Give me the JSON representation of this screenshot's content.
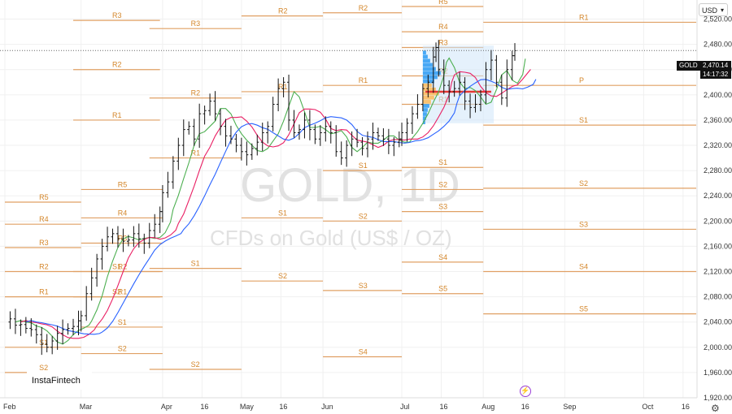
{
  "chart_data": {
    "type": "candlestick",
    "title": "GOLD, 1D",
    "subtitle": "CFDs on Gold (US$ / OZ)",
    "currency": "USD",
    "symbol": "GOLD",
    "last_price": "2,470.14",
    "countdown": "14:17:32",
    "brand": "InstaFintech",
    "ylim": [
      1920,
      2540
    ],
    "yticks": [
      1920,
      1960,
      2000,
      2040,
      2080,
      2120,
      2160,
      2200,
      2240,
      2280,
      2320,
      2360,
      2400,
      2440,
      2480,
      2520
    ],
    "ytick_labels": [
      "1,920.00",
      "1,960.00",
      "2,000.00",
      "2,040.00",
      "2,080.00",
      "2,120.00",
      "2,160.00",
      "2,200.00",
      "2,240.00",
      "2,280.00",
      "2,320.00",
      "2,360.00",
      "2,400.00",
      "2,440.00",
      "2,480.00",
      "2,520.00"
    ],
    "xticks": [
      "Feb",
      "Mar",
      "Apr",
      "16",
      "May",
      "16",
      "Jun",
      "Jul",
      "16",
      "Aug",
      "16",
      "Sep",
      "Oct",
      "16"
    ],
    "xtick_days": [
      0,
      29,
      60,
      75,
      90,
      105,
      121,
      151,
      166,
      182,
      197,
      213,
      243,
      258
    ],
    "last_day": 194,
    "axis_end_day": 263,
    "ohlc": [],
    "close_series": [
      [
        0,
        2040
      ],
      [
        2,
        2045
      ],
      [
        4,
        2035
      ],
      [
        6,
        2036
      ],
      [
        8,
        2030
      ],
      [
        10,
        2028
      ],
      [
        12,
        2020
      ],
      [
        14,
        2005
      ],
      [
        16,
        2000
      ],
      [
        18,
        2010
      ],
      [
        20,
        2022
      ],
      [
        22,
        2028
      ],
      [
        24,
        2030
      ],
      [
        26,
        2033
      ],
      [
        28,
        2042
      ],
      [
        29,
        2050
      ],
      [
        31,
        2085
      ],
      [
        33,
        2110
      ],
      [
        35,
        2140
      ],
      [
        37,
        2160
      ],
      [
        39,
        2175
      ],
      [
        41,
        2180
      ],
      [
        43,
        2172
      ],
      [
        45,
        2168
      ],
      [
        47,
        2170
      ],
      [
        49,
        2180
      ],
      [
        51,
        2172
      ],
      [
        53,
        2165
      ],
      [
        55,
        2185
      ],
      [
        57,
        2195
      ],
      [
        59,
        2215
      ],
      [
        60,
        2245
      ],
      [
        62,
        2262
      ],
      [
        64,
        2295
      ],
      [
        66,
        2320
      ],
      [
        68,
        2345
      ],
      [
        70,
        2350
      ],
      [
        72,
        2330
      ],
      [
        74,
        2370
      ],
      [
        76,
        2375
      ],
      [
        78,
        2390
      ],
      [
        80,
        2370
      ],
      [
        82,
        2350
      ],
      [
        84,
        2335
      ],
      [
        86,
        2330
      ],
      [
        88,
        2320
      ],
      [
        90,
        2310
      ],
      [
        92,
        2305
      ],
      [
        94,
        2315
      ],
      [
        96,
        2325
      ],
      [
        98,
        2340
      ],
      [
        100,
        2350
      ],
      [
        102,
        2385
      ],
      [
        104,
        2410
      ],
      [
        106,
        2420
      ],
      [
        108,
        2360
      ],
      [
        110,
        2340
      ],
      [
        112,
        2345
      ],
      [
        114,
        2360
      ],
      [
        116,
        2345
      ],
      [
        118,
        2330
      ],
      [
        120,
        2340
      ],
      [
        122,
        2350
      ],
      [
        124,
        2340
      ],
      [
        126,
        2310
      ],
      [
        128,
        2300
      ],
      [
        130,
        2320
      ],
      [
        132,
        2330
      ],
      [
        134,
        2325
      ],
      [
        136,
        2315
      ],
      [
        138,
        2330
      ],
      [
        140,
        2340
      ],
      [
        142,
        2335
      ],
      [
        144,
        2330
      ],
      [
        146,
        2320
      ],
      [
        148,
        2325
      ],
      [
        150,
        2330
      ],
      [
        151,
        2340
      ],
      [
        153,
        2355
      ],
      [
        155,
        2370
      ],
      [
        157,
        2385
      ],
      [
        159,
        2410
      ],
      [
        161,
        2420
      ],
      [
        163,
        2460
      ],
      [
        164,
        2475
      ],
      [
        165,
        2440
      ],
      [
        167,
        2415
      ],
      [
        169,
        2405
      ],
      [
        171,
        2410
      ],
      [
        173,
        2420
      ],
      [
        175,
        2390
      ],
      [
        177,
        2380
      ],
      [
        179,
        2385
      ],
      [
        181,
        2400
      ],
      [
        183,
        2440
      ],
      [
        185,
        2455
      ],
      [
        187,
        2420
      ],
      [
        189,
        2395
      ],
      [
        191,
        2440
      ],
      [
        193,
        2462
      ],
      [
        194,
        2470
      ]
    ],
    "pivots": [
      {
        "label": "R3",
        "x0": 26,
        "x1": 59,
        "y": 2518
      },
      {
        "label": "R2",
        "x0": 26,
        "x1": 59,
        "y": 2440
      },
      {
        "label": "R1",
        "x0": 26,
        "x1": 59,
        "y": 2360
      },
      {
        "label": "S1",
        "x0": 26,
        "x1": 59,
        "y": 2120
      },
      {
        "label": "S2",
        "x0": 26,
        "x1": 59,
        "y": 2080
      },
      {
        "label": "R5",
        "x0": 0,
        "x1": 29,
        "y": 2230
      },
      {
        "label": "R4",
        "x0": 0,
        "x1": 29,
        "y": 2195
      },
      {
        "label": "R3",
        "x0": 0,
        "x1": 29,
        "y": 2158
      },
      {
        "label": "R2",
        "x0": 0,
        "x1": 29,
        "y": 2120
      },
      {
        "label": "R1",
        "x0": 0,
        "x1": 29,
        "y": 2080
      },
      {
        "label": "S1",
        "x0": 0,
        "x1": 29,
        "y": 2000
      },
      {
        "label": "S2",
        "x0": 0,
        "x1": 29,
        "y": 1960
      },
      {
        "label": "R5",
        "x0": 29,
        "x1": 60,
        "y": 2250
      },
      {
        "label": "R4",
        "x0": 29,
        "x1": 60,
        "y": 2205
      },
      {
        "label": "R3",
        "x0": 29,
        "x1": 60,
        "y": 2165
      },
      {
        "label": "R2",
        "x0": 29,
        "x1": 60,
        "y": 2120
      },
      {
        "label": "R1",
        "x0": 29,
        "x1": 60,
        "y": 2080
      },
      {
        "label": "S1",
        "x0": 29,
        "x1": 60,
        "y": 2032
      },
      {
        "label": "S2",
        "x0": 29,
        "x1": 60,
        "y": 1990
      },
      {
        "label": "R3",
        "x0": 55,
        "x1": 90,
        "y": 2505
      },
      {
        "label": "R2",
        "x0": 55,
        "x1": 90,
        "y": 2395
      },
      {
        "label": "R1",
        "x0": 55,
        "x1": 90,
        "y": 2300
      },
      {
        "label": "S1",
        "x0": 55,
        "x1": 90,
        "y": 2125
      },
      {
        "label": "S2",
        "x0": 55,
        "x1": 90,
        "y": 1965
      },
      {
        "label": "R2",
        "x0": 90,
        "x1": 121,
        "y": 2525
      },
      {
        "label": "R1",
        "x0": 90,
        "x1": 121,
        "y": 2405
      },
      {
        "label": "S1",
        "x0": 90,
        "x1": 121,
        "y": 2205
      },
      {
        "label": "S2",
        "x0": 90,
        "x1": 121,
        "y": 2105
      },
      {
        "label": "R2",
        "x0": 121,
        "x1": 151,
        "y": 2530
      },
      {
        "label": "R1",
        "x0": 121,
        "x1": 151,
        "y": 2415
      },
      {
        "label": "S1",
        "x0": 121,
        "x1": 151,
        "y": 2280
      },
      {
        "label": "S2",
        "x0": 121,
        "x1": 151,
        "y": 2200
      },
      {
        "label": "S3",
        "x0": 121,
        "x1": 151,
        "y": 2090
      },
      {
        "label": "S4",
        "x0": 121,
        "x1": 151,
        "y": 1985
      },
      {
        "label": "R5",
        "x0": 151,
        "x1": 182,
        "y": 2540
      },
      {
        "label": "R4",
        "x0": 151,
        "x1": 182,
        "y": 2500
      },
      {
        "label": "R3",
        "x0": 151,
        "x1": 182,
        "y": 2475
      },
      {
        "label": "R2",
        "x0": 151,
        "x1": 182,
        "y": 2430
      },
      {
        "label": "R1",
        "x0": 151,
        "x1": 182,
        "y": 2385
      },
      {
        "label": "S1",
        "x0": 151,
        "x1": 182,
        "y": 2285
      },
      {
        "label": "S2",
        "x0": 151,
        "x1": 182,
        "y": 2250
      },
      {
        "label": "S3",
        "x0": 151,
        "x1": 182,
        "y": 2215
      },
      {
        "label": "S4",
        "x0": 151,
        "x1": 182,
        "y": 2135
      },
      {
        "label": "S5",
        "x0": 151,
        "x1": 182,
        "y": 2085
      },
      {
        "label": "R1",
        "x0": 182,
        "x1": 263,
        "y": 2515
      },
      {
        "label": "P",
        "x0": 182,
        "x1": 263,
        "y": 2415
      },
      {
        "label": "S1",
        "x0": 182,
        "x1": 263,
        "y": 2352
      },
      {
        "label": "S2",
        "x0": 182,
        "x1": 263,
        "y": 2252
      },
      {
        "label": "S3",
        "x0": 182,
        "x1": 263,
        "y": 2187
      },
      {
        "label": "S4",
        "x0": 182,
        "x1": 263,
        "y": 2120
      },
      {
        "label": "S5",
        "x0": 182,
        "x1": 263,
        "y": 2053
      }
    ],
    "colors": {
      "candle": "#111111",
      "pivot": "#e0a064",
      "pivot_label": "#d4862a",
      "ma_fast": "#4caf50",
      "ma_mid": "#e91e63",
      "ma_slow": "#2962ff",
      "volume_profile": "#2196f3",
      "volume_profile_accent": "#ffb74d",
      "poc": "#e53935",
      "range_box": "#cfe6fa"
    }
  }
}
